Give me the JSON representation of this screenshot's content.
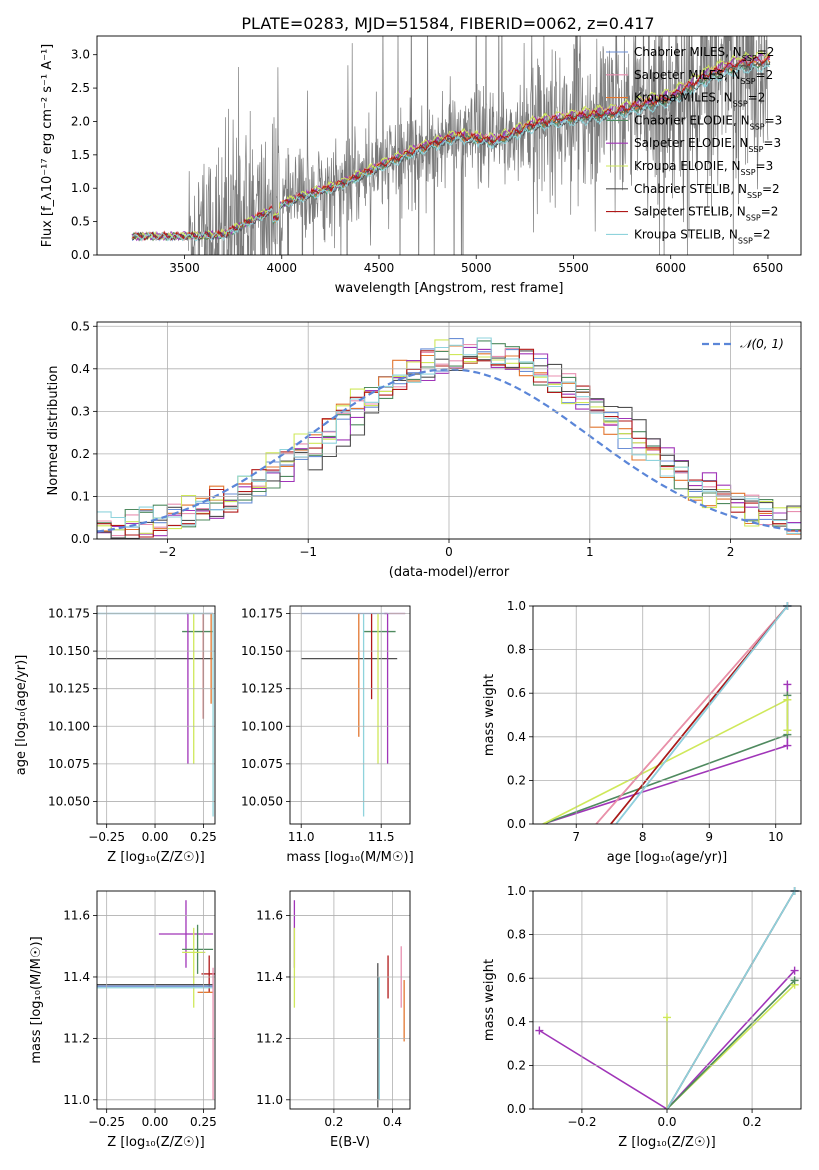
{
  "figure_title": "PLATE=0283, MJD=51584, FIBERID=0062, z=0.417",
  "models": [
    {
      "name": "Chabrier MILES",
      "nssp": "2",
      "color": "#6b8fd6"
    },
    {
      "name": "Salpeter MILES",
      "nssp": "2",
      "color": "#e88fb0"
    },
    {
      "name": "Kroupa MILES",
      "nssp": "2",
      "color": "#e2762f"
    },
    {
      "name": "Chabrier ELODIE",
      "nssp": "3",
      "color": "#4f8a5f"
    },
    {
      "name": "Salpeter ELODIE",
      "nssp": "3",
      "color": "#a035b8"
    },
    {
      "name": "Kroupa ELODIE",
      "nssp": "3",
      "color": "#cfe85a"
    },
    {
      "name": "Chabrier STELIB",
      "nssp": "2",
      "color": "#505050"
    },
    {
      "name": "Salpeter STELIB",
      "nssp": "2",
      "color": "#b01818"
    },
    {
      "name": "Kroupa STELIB",
      "nssp": "2",
      "color": "#8fd3dc"
    }
  ],
  "colors": {
    "data": "#7a7a7a",
    "gauss": "#5b86d8",
    "grid": "#b0b0b0"
  },
  "chart_data": [
    {
      "id": "spectrum",
      "type": "line",
      "xlabel": "wavelength [Angstrom, rest frame]",
      "ylabel": "Flux [f_λ10⁻¹⁷ erg cm⁻² s⁻¹ A⁻¹]",
      "xlim": [
        3050,
        6670
      ],
      "ylim": [
        0,
        3.28
      ],
      "xticks": [
        3500,
        4000,
        4500,
        5000,
        5500,
        6000,
        6500
      ],
      "yticks": [
        0.0,
        0.5,
        1.0,
        1.5,
        2.0,
        2.5,
        3.0
      ],
      "grid": false,
      "legend": "top-right",
      "data_range": [
        3520,
        6500
      ],
      "model_range": [
        3230,
        6510
      ],
      "continuum": [
        [
          3230,
          0.28
        ],
        [
          3500,
          0.28
        ],
        [
          3700,
          0.3
        ],
        [
          3900,
          0.6
        ],
        [
          4050,
          0.82
        ],
        [
          4300,
          1.05
        ],
        [
          4500,
          1.32
        ],
        [
          4700,
          1.58
        ],
        [
          4900,
          1.78
        ],
        [
          5100,
          1.7
        ],
        [
          5300,
          1.96
        ],
        [
          5500,
          2.06
        ],
        [
          5700,
          2.12
        ],
        [
          5900,
          2.28
        ],
        [
          6000,
          2.35
        ],
        [
          6200,
          2.7
        ],
        [
          6350,
          2.85
        ],
        [
          6500,
          2.9
        ]
      ]
    },
    {
      "id": "residuals",
      "type": "line",
      "xlabel": "(data-model)/error",
      "ylabel": "Normed distribution",
      "xlim": [
        -2.5,
        2.5
      ],
      "ylim": [
        0,
        0.51
      ],
      "xticks": [
        -2,
        -1,
        0,
        1,
        2
      ],
      "yticks": [
        0.0,
        0.1,
        0.2,
        0.3,
        0.4,
        0.5
      ],
      "grid": true,
      "legend": "top-right",
      "gauss_label": "𝒩(0, 1)",
      "bin_width": 0.1
    },
    {
      "id": "age_vs_Z",
      "type": "scatter",
      "xlabel": "Z [log₁₀(Z/Z☉)]",
      "ylabel": "age  [log₁₀(age/yr)]",
      "xlim": [
        -0.3,
        0.31
      ],
      "ylim": [
        10.035,
        10.18
      ],
      "xticks": [
        -0.25,
        0.0,
        0.25
      ],
      "yticks": [
        10.05,
        10.075,
        10.1,
        10.125,
        10.15,
        10.175
      ],
      "grid": true,
      "points": [
        {
          "m": 6,
          "x": 0.0,
          "y": 10.145,
          "xerr": [
            0.3,
            0.3
          ],
          "yerr": [
            0,
            0
          ]
        },
        {
          "m": 3,
          "x": 0.22,
          "y": 10.163,
          "xerr": [
            0.08,
            0.08
          ],
          "yerr": [
            0,
            0
          ]
        },
        {
          "m": 0,
          "x": 0.0,
          "y": 10.175,
          "xerr": [
            0.3,
            0.3
          ],
          "yerr": [
            0,
            0
          ]
        },
        {
          "m": 1,
          "x": 0.28,
          "y": 10.175,
          "xerr": [
            0.02,
            0.02
          ],
          "yerr": [
            0,
            0
          ]
        },
        {
          "m": 2,
          "x": 0.29,
          "y": 10.175,
          "xerr": [
            0,
            0
          ],
          "yerr": [
            0.06,
            0
          ]
        },
        {
          "m": 4,
          "x": 0.17,
          "y": 10.175,
          "xerr": [
            0.01,
            0
          ],
          "yerr": [
            0.1,
            0
          ]
        },
        {
          "m": 5,
          "x": 0.2,
          "y": 10.175,
          "xerr": [
            0,
            0
          ],
          "yerr": [
            0.1,
            0
          ]
        },
        {
          "m": 7,
          "x": 0.25,
          "y": 10.175,
          "xerr": [
            0,
            0
          ],
          "yerr": [
            0.07,
            0
          ]
        },
        {
          "m": 8,
          "x": 0.3,
          "y": 10.175,
          "xerr": [
            0.6,
            0
          ],
          "yerr": [
            0.135,
            0
          ]
        }
      ]
    },
    {
      "id": "age_vs_mass",
      "type": "scatter",
      "xlabel": "mass [log₁₀(M/M☉)]",
      "ylabel": "",
      "xlim": [
        10.93,
        11.68
      ],
      "ylim": [
        10.035,
        10.18
      ],
      "xticks": [
        11.0,
        11.5
      ],
      "yticks": [
        10.05,
        10.075,
        10.1,
        10.125,
        10.15,
        10.175
      ],
      "grid": true,
      "points": [
        {
          "m": 6,
          "x": 11.3,
          "y": 10.145,
          "xerr": [
            0.3,
            0.3
          ],
          "yerr": [
            0,
            0
          ]
        },
        {
          "m": 3,
          "x": 11.49,
          "y": 10.163,
          "xerr": [
            0.1,
            0.1
          ],
          "yerr": [
            0,
            0
          ]
        },
        {
          "m": 0,
          "x": 11.4,
          "y": 10.175,
          "xerr": [
            0.4,
            0.25
          ],
          "yerr": [
            0,
            0
          ]
        },
        {
          "m": 2,
          "x": 11.36,
          "y": 10.175,
          "xerr": [
            0,
            0
          ],
          "yerr": [
            0.082,
            0
          ]
        },
        {
          "m": 8,
          "x": 11.39,
          "y": 10.175,
          "xerr": [
            0,
            0
          ],
          "yerr": [
            0.135,
            0
          ]
        },
        {
          "m": 7,
          "x": 11.44,
          "y": 10.175,
          "xerr": [
            0,
            0
          ],
          "yerr": [
            0.057,
            0
          ]
        },
        {
          "m": 5,
          "x": 11.48,
          "y": 10.175,
          "xerr": [
            0,
            0
          ],
          "yerr": [
            0.1,
            0
          ]
        },
        {
          "m": 4,
          "x": 11.54,
          "y": 10.175,
          "xerr": [
            0.02,
            0
          ],
          "yerr": [
            0.1,
            0
          ]
        },
        {
          "m": 1,
          "x": 11.6,
          "y": 10.175,
          "xerr": [
            0.05,
            0.05
          ],
          "yerr": [
            0,
            0
          ]
        }
      ]
    },
    {
      "id": "weight_vs_age",
      "type": "line",
      "xlabel": "age  [log₁₀(age/yr)]",
      "ylabel": "mass weight",
      "xlim": [
        6.35,
        10.38
      ],
      "ylim": [
        0,
        1.0
      ],
      "xticks": [
        7,
        8,
        9,
        10
      ],
      "yticks": [
        0.0,
        0.2,
        0.4,
        0.6,
        0.8,
        1.0
      ],
      "grid": true,
      "series": [
        {
          "m": 4,
          "points": [
            [
              6.5,
              0.0
            ],
            [
              10.175,
              0.36
            ],
            [
              10.175,
              0.64
            ]
          ]
        },
        {
          "m": 3,
          "points": [
            [
              6.5,
              0.0
            ],
            [
              10.175,
              0.41
            ],
            [
              10.175,
              0.59
            ]
          ]
        },
        {
          "m": 5,
          "points": [
            [
              6.5,
              0.0
            ],
            [
              10.175,
              0.57
            ],
            [
              10.175,
              0.43
            ]
          ]
        },
        {
          "m": 2,
          "points": [
            [
              7.3,
              0.0
            ],
            [
              10.175,
              1.0
            ]
          ]
        },
        {
          "m": 1,
          "points": [
            [
              7.3,
              0.0
            ],
            [
              10.175,
              1.0
            ]
          ]
        },
        {
          "m": 6,
          "points": [
            [
              7.52,
              0.0
            ],
            [
              10.175,
              1.0
            ]
          ]
        },
        {
          "m": 7,
          "points": [
            [
              7.52,
              0.0
            ],
            [
              10.175,
              1.0
            ]
          ]
        },
        {
          "m": 0,
          "points": [
            [
              7.6,
              0.0
            ],
            [
              10.175,
              1.0
            ]
          ]
        },
        {
          "m": 8,
          "points": [
            [
              7.6,
              0.0
            ],
            [
              10.175,
              1.0
            ]
          ]
        }
      ]
    },
    {
      "id": "mass_vs_Z",
      "type": "scatter",
      "xlabel": "Z [log₁₀(Z/Z☉)]",
      "ylabel": "mass [log₁₀(M/M☉)]",
      "xlim": [
        -0.3,
        0.31
      ],
      "ylim": [
        10.97,
        11.68
      ],
      "xticks": [
        -0.25,
        0.0,
        0.25
      ],
      "yticks": [
        11.0,
        11.2,
        11.4,
        11.6
      ],
      "grid": true,
      "points": [
        {
          "m": 4,
          "x": 0.16,
          "y": 11.54,
          "xerr": [
            0.14,
            0.14
          ],
          "yerr": [
            0.11,
            0.11
          ]
        },
        {
          "m": 3,
          "x": 0.22,
          "y": 11.49,
          "xerr": [
            0.08,
            0.08
          ],
          "yerr": [
            0.08,
            0.08
          ]
        },
        {
          "m": 5,
          "x": 0.2,
          "y": 11.48,
          "xerr": [
            0.06,
            0.06
          ],
          "yerr": [
            0.18,
            0.08
          ]
        },
        {
          "m": 7,
          "x": 0.28,
          "y": 11.41,
          "xerr": [
            0.04,
            0.03
          ],
          "yerr": [
            0.06,
            0.06
          ]
        },
        {
          "m": 6,
          "x": 0.0,
          "y": 11.375,
          "xerr": [
            0.3,
            0.3
          ],
          "yerr": [
            0,
            0
          ]
        },
        {
          "m": 0,
          "x": 0.0,
          "y": 11.37,
          "xerr": [
            0.3,
            0.3
          ],
          "yerr": [
            0,
            0
          ]
        },
        {
          "m": 8,
          "x": 0.0,
          "y": 11.365,
          "xerr": [
            0.3,
            0.3
          ],
          "yerr": [
            0,
            0
          ]
        },
        {
          "m": 2,
          "x": 0.28,
          "y": 11.35,
          "xerr": [
            0.06,
            0.02
          ],
          "yerr": [
            0,
            0
          ]
        },
        {
          "m": 1,
          "x": 0.3,
          "y": 11.38,
          "xerr": [
            0,
            0
          ],
          "yerr": [
            0.38,
            0.05
          ]
        }
      ]
    },
    {
      "id": "mass_vs_ebv",
      "type": "scatter",
      "xlabel": "E(B-V)",
      "ylabel": "",
      "xlim": [
        0.05,
        0.46
      ],
      "ylim": [
        10.97,
        11.68
      ],
      "xticks": [
        0.2,
        0.4
      ],
      "yticks": [
        11.0,
        11.2,
        11.4,
        11.6
      ],
      "grid": true,
      "points": [
        {
          "m": 4,
          "x": 0.065,
          "y": 11.54,
          "xerr": [
            0,
            0
          ],
          "yerr": [
            0.11,
            0.11
          ]
        },
        {
          "m": 5,
          "x": 0.065,
          "y": 11.48,
          "xerr": [
            0,
            0
          ],
          "yerr": [
            0.18,
            0.08
          ]
        },
        {
          "m": 6,
          "x": 0.35,
          "y": 11.375,
          "xerr": [
            0,
            0
          ],
          "yerr": [
            0.4,
            0.07
          ]
        },
        {
          "m": 8,
          "x": 0.355,
          "y": 11.2,
          "xerr": [
            0,
            0
          ],
          "yerr": [
            0.2,
            0.2
          ]
        },
        {
          "m": 7,
          "x": 0.385,
          "y": 11.4,
          "xerr": [
            0,
            0
          ],
          "yerr": [
            0.07,
            0.07
          ]
        },
        {
          "m": 1,
          "x": 0.43,
          "y": 11.4,
          "xerr": [
            0,
            0
          ],
          "yerr": [
            0.1,
            0.1
          ]
        },
        {
          "m": 2,
          "x": 0.44,
          "y": 11.29,
          "xerr": [
            0,
            0
          ],
          "yerr": [
            0.1,
            0.1
          ]
        }
      ]
    },
    {
      "id": "weight_vs_Z",
      "type": "line",
      "xlabel": "Z [log₁₀(Z/Z☉)]",
      "ylabel": "mass weight",
      "xlim": [
        -0.315,
        0.315
      ],
      "ylim": [
        0,
        1.0
      ],
      "xticks": [
        -0.2,
        0.0,
        0.2
      ],
      "yticks": [
        0.0,
        0.2,
        0.4,
        0.6,
        0.8,
        1.0
      ],
      "grid": true,
      "series": [
        {
          "m": 4,
          "points": [
            [
              -0.3,
              0.36
            ],
            [
              0.0,
              0.0
            ],
            [
              0.3,
              0.635
            ]
          ]
        },
        {
          "m": 5,
          "points": [
            [
              0.0,
              0.42
            ],
            [
              0.0,
              0.0
            ],
            [
              0.3,
              0.57
            ]
          ]
        },
        {
          "m": 3,
          "points": [
            [
              0.0,
              0.0
            ],
            [
              0.3,
              0.59
            ]
          ]
        },
        {
          "m": 0,
          "points": [
            [
              0.0,
              0.0
            ],
            [
              0.3,
              1.0
            ]
          ]
        },
        {
          "m": 1,
          "points": [
            [
              0.0,
              0.0
            ],
            [
              0.3,
              1.0
            ]
          ]
        },
        {
          "m": 6,
          "points": [
            [
              0.0,
              0.0
            ],
            [
              0.3,
              1.0
            ]
          ]
        },
        {
          "m": 8,
          "points": [
            [
              0.0,
              0.0
            ],
            [
              0.3,
              1.0
            ]
          ]
        }
      ]
    }
  ]
}
